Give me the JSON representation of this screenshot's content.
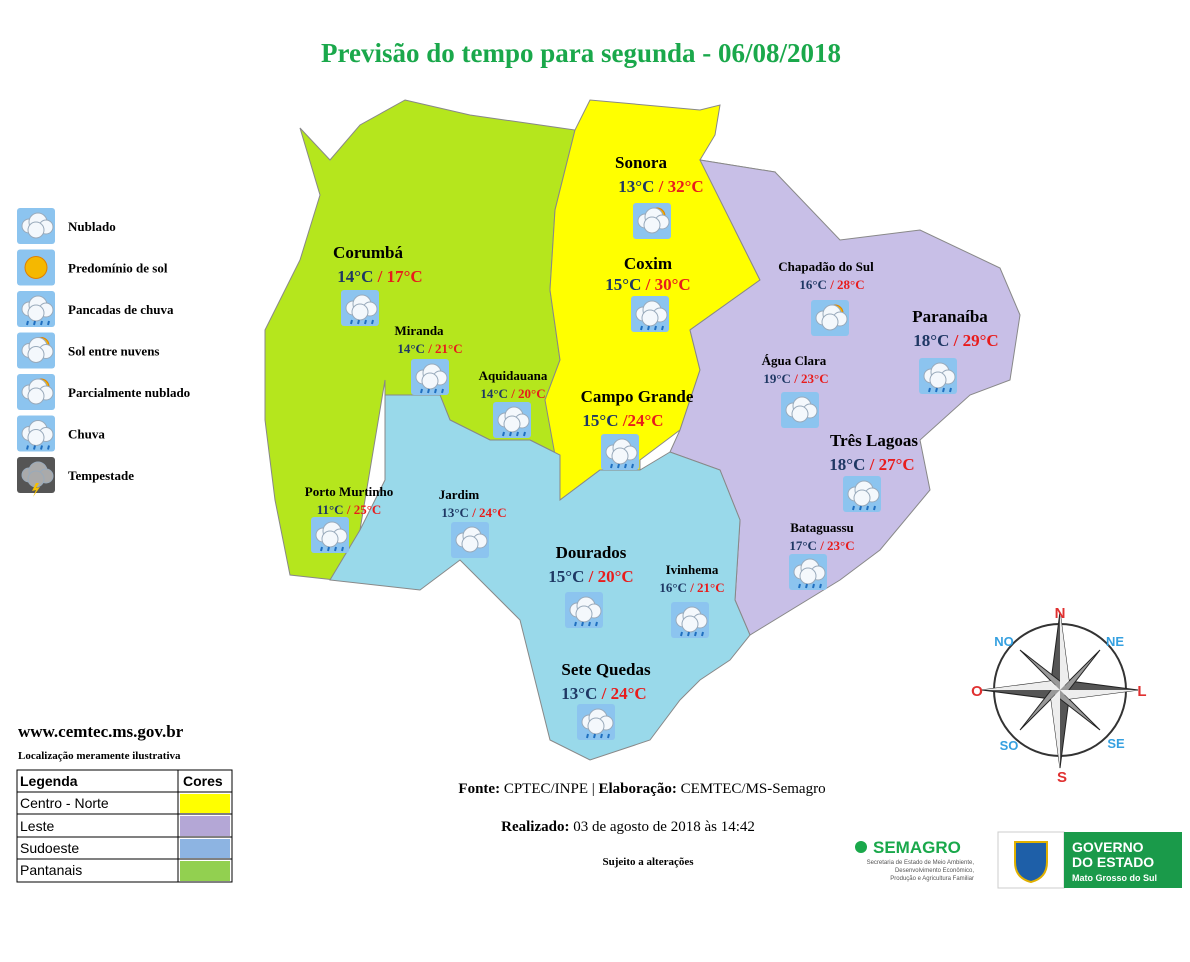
{
  "title": "Previsão do tempo para segunda - 06/08/2018",
  "legend_icons": [
    "Nublado",
    "Predomínio de sol",
    "Pancadas de chuva",
    "Sol entre nuvens",
    "Parcialmente nublado",
    "Chuva",
    "Tempestade"
  ],
  "cities": [
    {
      "name": "Sonora",
      "min": "13°C",
      "max": "/ 32°C"
    },
    {
      "name": "Coxim",
      "min": "15°C",
      "max": "/ 30°C"
    },
    {
      "name": "Corumbá",
      "min": "14°C",
      "max": "/ 17°C"
    },
    {
      "name": "Miranda",
      "min": "14°C",
      "max": "/ 21°C"
    },
    {
      "name": "Aquidauana",
      "min": "14°C",
      "max": "/ 20°C"
    },
    {
      "name": "Campo Grande",
      "min": "15°C",
      "max": "/24°C"
    },
    {
      "name": "Chapadão do Sul",
      "min": "16°C",
      "max": "/ 28°C"
    },
    {
      "name": "Paranaíba",
      "min": "18°C",
      "max": "/ 29°C"
    },
    {
      "name": "Água Clara",
      "min": "19°C",
      "max": "/ 23°C"
    },
    {
      "name": "Três Lagoas",
      "min": "18°C",
      "max": "/ 27°C"
    },
    {
      "name": "Porto Murtinho",
      "min": "11°C",
      "max": "/ 25°C"
    },
    {
      "name": "Jardim",
      "min": "13°C",
      "max": "/ 24°C"
    },
    {
      "name": "Dourados",
      "min": "15°C",
      "max": "/ 20°C"
    },
    {
      "name": "Ivinhema",
      "min": "16°C",
      "max": "/ 21°C"
    },
    {
      "name": "Bataguassu",
      "min": "17°C",
      "max": "/ 23°C"
    },
    {
      "name": "Sete Quedas",
      "min": "13°C",
      "max": "/ 24°C"
    }
  ],
  "website": "www.cemtec.ms.gov.br",
  "disclaimer": "Localização meramente ilustrativa",
  "table": {
    "header": [
      "Legenda",
      "Cores"
    ],
    "rows": [
      "Centro - Norte",
      "Leste",
      "Sudoeste",
      "Pantanais"
    ]
  },
  "source": {
    "label1": "Fonte:",
    "text1": "CPTEC/INPE |",
    "label2": "Elaboração:",
    "text2": "CEMTEC/MS-Semagro"
  },
  "made": {
    "label": "Realizado:",
    "text": "03 de agosto de 2018 às 14:42"
  },
  "note": "Sujeito a alterações",
  "compass": {
    "n": "N",
    "ne": "NE",
    "l": "L",
    "se": "SE",
    "s": "S",
    "so": "SO",
    "o": "O",
    "no": "NO"
  },
  "logos": {
    "semagro": "SEMAGRO",
    "semagro_sub": [
      "Secretaria de Estado de Meio Ambiente,",
      "Desenvolvimento Econômico,",
      "Produção e Agricultura Familiar"
    ],
    "gov": [
      "GOVERNO",
      "DO ESTADO",
      "Mato Grosso do Sul"
    ]
  }
}
